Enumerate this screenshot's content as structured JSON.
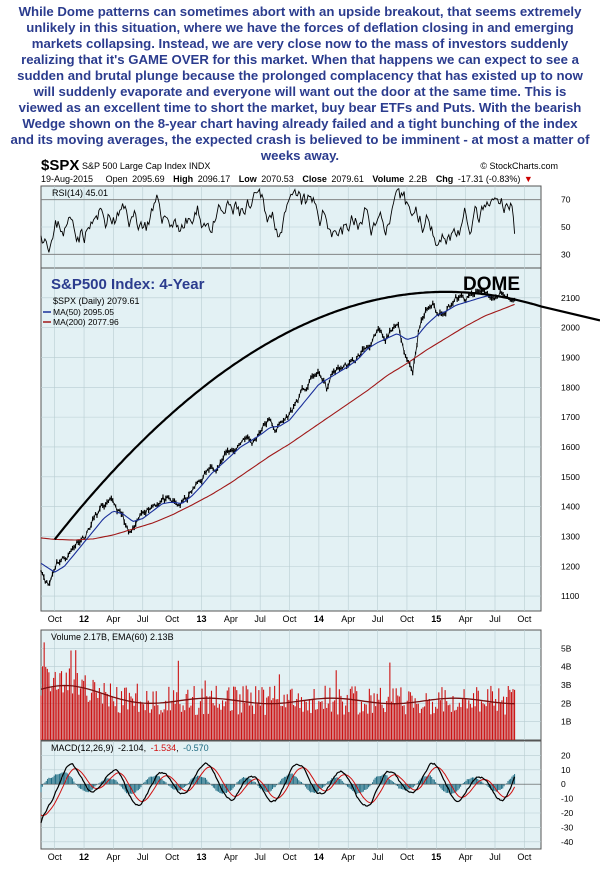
{
  "commentary": "While Dome patterns can sometimes abort with an upside breakout, that seems extremely unlikely in this situation, where we have the forces of deflation closing in and emerging markets collapsing. Instead, we are very close now to the mass of investors suddenly realizing that it's GAME OVER for this market. When that happens we can expect to see a sudden and brutal plunge because the prolonged complacency that has existed up to now will suddenly evaporate and everyone will want out the door at the same time. This is viewed as an excellent time to short the market, buy bear ETFs and Puts. With the bearish Wedge shown on the 8-year chart having already failed and a tight bunching of the index and its moving averages, the expected crash is believed to be imminent - at most a matter of weeks away.",
  "header": {
    "symbol": "$SPX",
    "name": "S&P 500 Large Cap Index INDX",
    "source": "© StockCharts.com",
    "date": "19-Aug-2015",
    "open_label": "Open",
    "open": "2095.69",
    "high_label": "High",
    "high": "2096.17",
    "low_label": "Low",
    "low": "2070.53",
    "close_label": "Close",
    "close": "2079.61",
    "volume_label": "Volume",
    "volume": "2.2B",
    "chg_label": "Chg",
    "chg": "-17.31 (-0.83%)",
    "down_arrow": "▼"
  },
  "colors": {
    "panel_bg": "#e3f1f4",
    "grid": "#b9cdd2",
    "price": "#000000",
    "ma50": "#1a2f9a",
    "ma200": "#a01818",
    "volume": "#cc1111",
    "macd_hist": "#1d6b82",
    "signal": "#d01010",
    "title_blue": "#2b3c8e",
    "chg_red": "#cc0000"
  },
  "chart_data": [
    {
      "type": "line",
      "panel": "rsi",
      "legend": "RSI(14) 45.01",
      "ylim": [
        20,
        80
      ],
      "yticks": [
        30,
        50,
        70
      ],
      "guides": [
        30,
        70
      ],
      "last_value": 45.01
    },
    {
      "type": "line",
      "panel": "price",
      "title": "S&P500 Index: 4-Year",
      "annotation": "DOME",
      "ylim": [
        1050,
        2200
      ],
      "yticks": [
        1100,
        1200,
        1300,
        1400,
        1500,
        1600,
        1700,
        1800,
        1900,
        2000,
        2100
      ],
      "x_tick_labels": [
        "Oct",
        "12",
        "Apr",
        "Jul",
        "Oct",
        "13",
        "Apr",
        "Jul",
        "Oct",
        "14",
        "Apr",
        "Jul",
        "Oct",
        "15",
        "Apr",
        "Jul",
        "Oct"
      ],
      "x_tick_months": [
        0,
        3,
        6,
        9,
        12,
        15,
        18,
        21,
        24,
        27,
        30,
        33,
        36,
        39,
        42,
        45,
        48
      ],
      "x_range_months": [
        -1.4,
        49.7
      ],
      "series": [
        {
          "name": "$SPX (Daily) 2079.61",
          "role": "price",
          "anchors": [
            [
              -1.4,
              1195
            ],
            [
              -0.6,
              1140
            ],
            [
              0.2,
              1220
            ],
            [
              1.0,
              1230
            ],
            [
              1.6,
              1250
            ],
            [
              2.4,
              1290
            ],
            [
              3.2,
              1310
            ],
            [
              4.0,
              1360
            ],
            [
              5.0,
              1400
            ],
            [
              6.0,
              1405
            ],
            [
              7.0,
              1360
            ],
            [
              7.6,
              1300
            ],
            [
              8.4,
              1330
            ],
            [
              9.2,
              1390
            ],
            [
              10.0,
              1410
            ],
            [
              11.0,
              1430
            ],
            [
              11.8,
              1410
            ],
            [
              12.6,
              1400
            ],
            [
              13.4,
              1420
            ],
            [
              14.4,
              1465
            ],
            [
              15.5,
              1515
            ],
            [
              16.5,
              1540
            ],
            [
              17.5,
              1575
            ],
            [
              18.5,
              1595
            ],
            [
              19.5,
              1640
            ],
            [
              20.2,
              1610
            ],
            [
              21.0,
              1660
            ],
            [
              21.8,
              1690
            ],
            [
              22.5,
              1660
            ],
            [
              23.5,
              1690
            ],
            [
              24.2,
              1720
            ],
            [
              25.0,
              1770
            ],
            [
              25.8,
              1800
            ],
            [
              26.5,
              1840
            ],
            [
              27.2,
              1840
            ],
            [
              27.8,
              1790
            ],
            [
              28.5,
              1850
            ],
            [
              29.5,
              1870
            ],
            [
              30.5,
              1880
            ],
            [
              31.5,
              1920
            ],
            [
              32.5,
              1960
            ],
            [
              33.2,
              1980
            ],
            [
              33.8,
              1940
            ],
            [
              34.5,
              2000
            ],
            [
              35.2,
              1990
            ],
            [
              36.0,
              1900
            ],
            [
              36.6,
              1860
            ],
            [
              37.2,
              2000
            ],
            [
              38.0,
              2060
            ],
            [
              38.6,
              2080
            ],
            [
              39.2,
              2040
            ],
            [
              40.0,
              2070
            ],
            [
              41.0,
              2100
            ],
            [
              42.0,
              2090
            ],
            [
              43.0,
              2110
            ],
            [
              44.0,
              2120
            ],
            [
              45.0,
              2090
            ],
            [
              45.8,
              2120
            ],
            [
              46.6,
              2090
            ],
            [
              47.0,
              2080
            ]
          ]
        },
        {
          "name": "MA(50) 2095.05",
          "role": "ma50",
          "anchors": [
            [
              -1.4,
              1210
            ],
            [
              0,
              1180
            ],
            [
              1,
              1200
            ],
            [
              2,
              1240
            ],
            [
              3,
              1280
            ],
            [
              4,
              1320
            ],
            [
              5,
              1360
            ],
            [
              6,
              1385
            ],
            [
              7,
              1375
            ],
            [
              8,
              1350
            ],
            [
              9,
              1360
            ],
            [
              10,
              1385
            ],
            [
              11,
              1410
            ],
            [
              12,
              1415
            ],
            [
              13,
              1410
            ],
            [
              14,
              1435
            ],
            [
              15,
              1470
            ],
            [
              16,
              1510
            ],
            [
              17,
              1540
            ],
            [
              18,
              1570
            ],
            [
              19,
              1600
            ],
            [
              20,
              1620
            ],
            [
              21,
              1640
            ],
            [
              22,
              1665
            ],
            [
              23,
              1670
            ],
            [
              24,
              1690
            ],
            [
              25,
              1730
            ],
            [
              26,
              1770
            ],
            [
              27,
              1810
            ],
            [
              28,
              1830
            ],
            [
              29,
              1850
            ],
            [
              30,
              1870
            ],
            [
              31,
              1895
            ],
            [
              32,
              1930
            ],
            [
              33,
              1950
            ],
            [
              34,
              1965
            ],
            [
              35,
              1980
            ],
            [
              36,
              1960
            ],
            [
              37,
              1970
            ],
            [
              38,
              2010
            ],
            [
              39,
              2040
            ],
            [
              40,
              2055
            ],
            [
              41,
              2075
            ],
            [
              42,
              2085
            ],
            [
              43,
              2095
            ],
            [
              44,
              2105
            ],
            [
              45,
              2108
            ],
            [
              46,
              2100
            ],
            [
              47,
              2095
            ]
          ]
        },
        {
          "name": "MA(200) 2077.96",
          "role": "ma200",
          "anchors": [
            [
              -1.4,
              1295
            ],
            [
              0,
              1290
            ],
            [
              2,
              1288
            ],
            [
              4,
              1292
            ],
            [
              6,
              1305
            ],
            [
              8,
              1325
            ],
            [
              10,
              1345
            ],
            [
              12,
              1372
            ],
            [
              14,
              1405
            ],
            [
              16,
              1440
            ],
            [
              18,
              1480
            ],
            [
              20,
              1525
            ],
            [
              22,
              1570
            ],
            [
              24,
              1610
            ],
            [
              26,
              1655
            ],
            [
              28,
              1700
            ],
            [
              30,
              1745
            ],
            [
              32,
              1790
            ],
            [
              34,
              1840
            ],
            [
              36,
              1880
            ],
            [
              38,
              1925
            ],
            [
              40,
              1965
            ],
            [
              42,
              2005
            ],
            [
              44,
              2040
            ],
            [
              46,
              2065
            ],
            [
              47,
              2078
            ]
          ]
        }
      ],
      "dome_anchors": [
        [
          0,
          1290
        ],
        [
          8,
          1645
        ],
        [
          16,
          1880
        ],
        [
          24,
          2020
        ],
        [
          32,
          2095
        ],
        [
          40,
          2120
        ],
        [
          44,
          2117
        ],
        [
          48,
          2095
        ],
        [
          49.7,
          2080
        ]
      ]
    },
    {
      "type": "bar",
      "panel": "volume",
      "legend": "Volume 2.17B, EMA(60) 2.13B",
      "ylim": [
        0,
        6
      ],
      "yticks": [
        1,
        2,
        3,
        4,
        5
      ],
      "ytick_labels": [
        "1B",
        "2B",
        "3B",
        "4B",
        "5B"
      ],
      "ema_level": 2.13
    },
    {
      "type": "line",
      "panel": "macd",
      "legend_name": "MACD(12,26,9)",
      "macd": "-2.104",
      "signal": "-1.534",
      "hist": "-0.570",
      "ylim": [
        -45,
        30
      ],
      "yticks": [
        -40,
        -30,
        -20,
        -10,
        0,
        10,
        20
      ]
    }
  ]
}
